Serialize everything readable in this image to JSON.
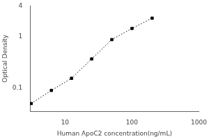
{
  "chart_data": {
    "type": "line",
    "x": [
      3.125,
      6.25,
      12.5,
      25,
      50,
      100,
      200
    ],
    "values": [
      0.05,
      0.09,
      0.155,
      0.37,
      0.88,
      1.45,
      2.3
    ],
    "xlabel": "Human ApoC2 concentration(ng/mL)",
    "ylabel": "Optical Density",
    "xlim": [
      3,
      1000
    ],
    "ylim": [
      0.035,
      4
    ],
    "xticks": [
      10,
      100,
      1000
    ],
    "yticks": [
      0.1,
      1,
      4
    ],
    "log": true,
    "grid": false,
    "color": "black",
    "marker": "square",
    "line_style": "dotted"
  }
}
